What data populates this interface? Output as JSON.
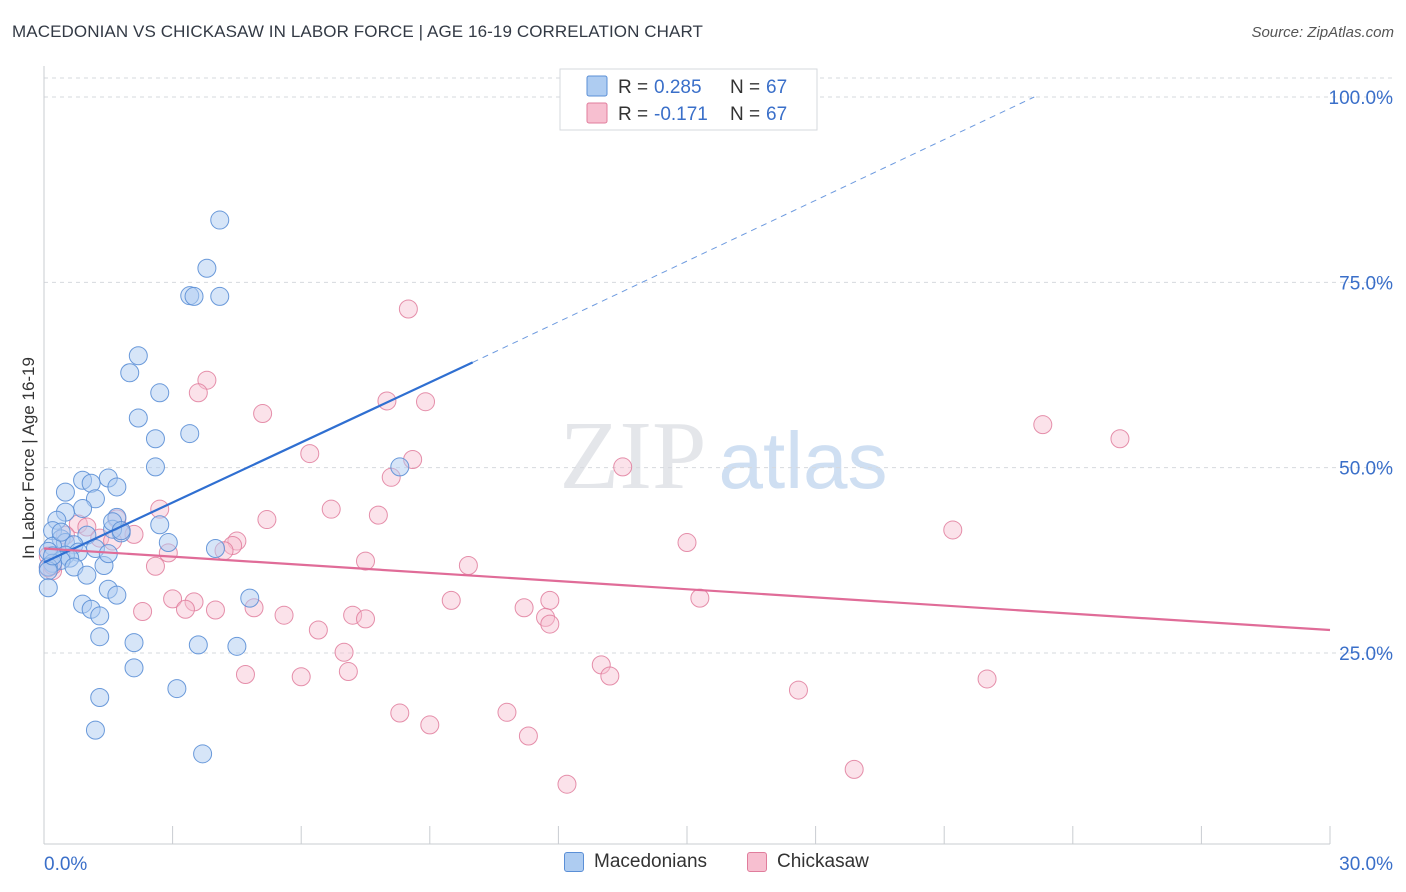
{
  "header": {
    "title": "MACEDONIAN VS CHICKASAW IN LABOR FORCE | AGE 16-19 CORRELATION CHART",
    "source": "Source: ZipAtlas.com"
  },
  "watermark": {
    "zip": "ZIP",
    "atlas": "atlas"
  },
  "legend_top": {
    "r_label": "R =",
    "n_label": "N =",
    "rows": [
      {
        "r": "0.285",
        "n": "67"
      },
      {
        "r": "-0.171",
        "n": "67"
      }
    ]
  },
  "legend_bottom": [
    "Macedonians",
    "Chickasaw"
  ],
  "colors": {
    "blue_fill": "#aeccf1",
    "blue_stroke": "#5b8fd6",
    "blue_line": "#2f6fd1",
    "pink_fill": "#f7bfd0",
    "pink_stroke": "#e07d9c",
    "pink_line": "#e06c98",
    "value_text": "#3a6fc9",
    "grid": "#d6d9de"
  },
  "chart_data": {
    "type": "scatter",
    "title": "MACEDONIAN VS CHICKASAW IN LABOR FORCE | AGE 16-19 CORRELATION CHART",
    "xlabel": "",
    "ylabel": "In Labor Force | Age 16-19",
    "xlim": [
      0,
      30
    ],
    "ylim": [
      0,
      104
    ],
    "x_tick_labels": [
      {
        "value": 0,
        "label": "0.0%"
      },
      {
        "value": 30,
        "label": "30.0%"
      }
    ],
    "y_tick_labels": [
      {
        "value": 25,
        "label": "25.0%"
      },
      {
        "value": 50,
        "label": "50.0%"
      },
      {
        "value": 75,
        "label": "75.0%"
      },
      {
        "value": 100,
        "label": "100.0%"
      }
    ],
    "x_minor_ticks": [
      3,
      6,
      9,
      12,
      15,
      18,
      21,
      24,
      27,
      30
    ],
    "grid": true,
    "legend_position": "top-center",
    "series": [
      {
        "name": "Macedonians",
        "color": "#aeccf1",
        "r": 0.285,
        "n": 67,
        "trend": {
          "x": [
            0,
            10
          ],
          "y": [
            37.2,
            64.2
          ],
          "extended_to": [
            23.1,
            100
          ]
        },
        "points": [
          [
            4.1,
            83.4
          ],
          [
            3.8,
            76.9
          ],
          [
            3.4,
            73.2
          ],
          [
            3.5,
            73.1
          ],
          [
            4.1,
            73.1
          ],
          [
            2.2,
            65.1
          ],
          [
            2.0,
            62.8
          ],
          [
            2.7,
            60.1
          ],
          [
            2.2,
            56.7
          ],
          [
            3.4,
            54.6
          ],
          [
            2.6,
            53.9
          ],
          [
            2.6,
            50.1
          ],
          [
            8.3,
            50.1
          ],
          [
            1.5,
            48.6
          ],
          [
            0.9,
            48.3
          ],
          [
            1.1,
            47.9
          ],
          [
            0.5,
            46.7
          ],
          [
            1.7,
            47.4
          ],
          [
            1.2,
            45.8
          ],
          [
            0.9,
            44.5
          ],
          [
            0.5,
            44.0
          ],
          [
            0.3,
            42.9
          ],
          [
            1.7,
            43.3
          ],
          [
            2.7,
            42.3
          ],
          [
            1.8,
            41.2
          ],
          [
            0.2,
            41.5
          ],
          [
            1.6,
            41.7
          ],
          [
            1.0,
            40.9
          ],
          [
            0.4,
            40.4
          ],
          [
            0.5,
            39.9
          ],
          [
            0.7,
            39.6
          ],
          [
            0.2,
            39.4
          ],
          [
            1.2,
            39.1
          ],
          [
            0.1,
            38.7
          ],
          [
            0.8,
            38.6
          ],
          [
            0.5,
            38.2
          ],
          [
            0.6,
            37.8
          ],
          [
            0.4,
            37.5
          ],
          [
            0.2,
            37.1
          ],
          [
            0.1,
            36.6
          ],
          [
            0.7,
            36.6
          ],
          [
            1.4,
            36.8
          ],
          [
            0.1,
            36.1
          ],
          [
            1.0,
            35.5
          ],
          [
            2.9,
            39.9
          ],
          [
            4.0,
            39.1
          ],
          [
            1.5,
            38.4
          ],
          [
            0.9,
            31.6
          ],
          [
            1.5,
            33.6
          ],
          [
            1.7,
            32.8
          ],
          [
            0.1,
            33.8
          ],
          [
            1.1,
            30.9
          ],
          [
            1.3,
            30.0
          ],
          [
            4.8,
            32.4
          ],
          [
            1.3,
            27.2
          ],
          [
            2.1,
            26.4
          ],
          [
            3.6,
            26.1
          ],
          [
            4.5,
            25.9
          ],
          [
            2.1,
            23.0
          ],
          [
            3.1,
            20.2
          ],
          [
            1.3,
            19.0
          ],
          [
            1.2,
            14.6
          ],
          [
            3.7,
            11.4
          ],
          [
            0.4,
            41.3
          ],
          [
            0.2,
            38.1
          ],
          [
            1.6,
            42.7
          ],
          [
            1.8,
            41.5
          ]
        ]
      },
      {
        "name": "Chickasaw",
        "color": "#f7bfd0",
        "r": -0.171,
        "n": 67,
        "trend": {
          "x": [
            0,
            30
          ],
          "y": [
            39.1,
            28.1
          ]
        },
        "points": [
          [
            8.5,
            71.4
          ],
          [
            3.8,
            61.8
          ],
          [
            3.6,
            60.1
          ],
          [
            8.0,
            59.0
          ],
          [
            8.9,
            58.9
          ],
          [
            5.1,
            57.3
          ],
          [
            23.3,
            55.8
          ],
          [
            25.1,
            53.9
          ],
          [
            6.2,
            51.9
          ],
          [
            8.6,
            51.1
          ],
          [
            13.5,
            50.1
          ],
          [
            8.1,
            48.7
          ],
          [
            2.7,
            44.4
          ],
          [
            6.7,
            44.4
          ],
          [
            7.8,
            43.6
          ],
          [
            5.2,
            43.0
          ],
          [
            1.7,
            43.1
          ],
          [
            0.8,
            42.4
          ],
          [
            1.0,
            42.0
          ],
          [
            21.2,
            41.6
          ],
          [
            1.8,
            41.5
          ],
          [
            2.1,
            41.0
          ],
          [
            0.5,
            40.9
          ],
          [
            1.3,
            40.5
          ],
          [
            1.6,
            40.1
          ],
          [
            4.5,
            40.1
          ],
          [
            15.0,
            39.9
          ],
          [
            4.4,
            39.5
          ],
          [
            4.2,
            38.8
          ],
          [
            2.9,
            38.5
          ],
          [
            0.1,
            38.1
          ],
          [
            7.5,
            37.4
          ],
          [
            9.9,
            36.8
          ],
          [
            2.6,
            36.7
          ],
          [
            0.1,
            36.5
          ],
          [
            0.2,
            36.1
          ],
          [
            15.3,
            32.4
          ],
          [
            3.0,
            32.3
          ],
          [
            3.5,
            31.9
          ],
          [
            9.5,
            32.1
          ],
          [
            11.8,
            32.1
          ],
          [
            4.9,
            31.1
          ],
          [
            11.2,
            31.1
          ],
          [
            3.3,
            30.9
          ],
          [
            4.0,
            30.8
          ],
          [
            2.3,
            30.6
          ],
          [
            5.6,
            30.1
          ],
          [
            7.2,
            30.1
          ],
          [
            7.5,
            29.6
          ],
          [
            11.7,
            29.8
          ],
          [
            11.8,
            28.9
          ],
          [
            6.4,
            28.1
          ],
          [
            7.0,
            25.1
          ],
          [
            13.0,
            23.4
          ],
          [
            13.2,
            21.9
          ],
          [
            4.7,
            22.1
          ],
          [
            6.0,
            21.8
          ],
          [
            7.1,
            22.5
          ],
          [
            17.6,
            20.0
          ],
          [
            22.0,
            21.5
          ],
          [
            8.3,
            16.9
          ],
          [
            10.8,
            17.0
          ],
          [
            9.0,
            15.3
          ],
          [
            11.3,
            13.8
          ],
          [
            18.9,
            9.3
          ],
          [
            12.2,
            7.3
          ],
          [
            0.2,
            36.8
          ]
        ]
      }
    ]
  }
}
